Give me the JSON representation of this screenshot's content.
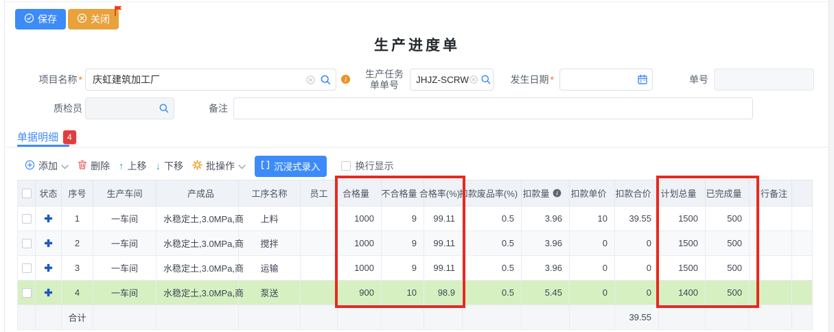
{
  "header": {
    "save_label": "保存",
    "close_label": "关闭"
  },
  "title": "生产进度单",
  "form": {
    "project_label": "项目名称",
    "project_value": "庆虹建筑加工厂",
    "task_label_line1": "生产任务",
    "task_label_line2": "单单号",
    "task_value": "JHJZ-SCRW",
    "date_label": "发生日期",
    "date_value": "",
    "doc_label": "单号",
    "doc_value": "",
    "inspector_label": "质检员",
    "inspector_value": "",
    "remark_label": "备注",
    "remark_value": ""
  },
  "tab": {
    "label": "单据明细",
    "badge": "4"
  },
  "toolbar": {
    "add": "添加",
    "remove": "删除",
    "move_up": "上移",
    "move_down": "下移",
    "batch": "批操作",
    "immersive": "沉浸式录入",
    "wrap": "换行显示"
  },
  "table": {
    "columns": [
      "状态",
      "序号",
      "生产车间",
      "产成品",
      "工序名称",
      "员工",
      "合格量",
      "不合格量",
      "合格率(%)",
      "扣款废品率(%)",
      "扣款量",
      "扣款单价",
      "扣款合价",
      "计划总量",
      "已完成量",
      "行备注"
    ],
    "rows": [
      {
        "seq": "1",
        "workshop": "一车间",
        "product": "水稳定土,3.0MPa,商",
        "process": "上料",
        "staff": "",
        "qualified": "1000",
        "unqualified": "9",
        "rate": "99.11",
        "scrap_rate": "0.5",
        "deduct_qty": "3.96",
        "deduct_price": "10",
        "deduct_total": "39.55",
        "plan_total": "1500",
        "completed": "500",
        "row_remark": "",
        "highlight": false
      },
      {
        "seq": "2",
        "workshop": "一车间",
        "product": "水稳定土,3.0MPa,商",
        "process": "搅拌",
        "staff": "",
        "qualified": "1000",
        "unqualified": "9",
        "rate": "99.11",
        "scrap_rate": "0.5",
        "deduct_qty": "3.96",
        "deduct_price": "0",
        "deduct_total": "0",
        "plan_total": "1500",
        "completed": "500",
        "row_remark": "",
        "highlight": false
      },
      {
        "seq": "3",
        "workshop": "一车间",
        "product": "水稳定土,3.0MPa,商",
        "process": "运输",
        "staff": "",
        "qualified": "1000",
        "unqualified": "9",
        "rate": "99.11",
        "scrap_rate": "0.5",
        "deduct_qty": "3.96",
        "deduct_price": "0",
        "deduct_total": "0",
        "plan_total": "1500",
        "completed": "500",
        "row_remark": "",
        "highlight": false
      },
      {
        "seq": "4",
        "workshop": "一车间",
        "product": "水稳定土,3.0MPa,商",
        "process": "泵送",
        "staff": "",
        "qualified": "900",
        "unqualified": "10",
        "rate": "98.9",
        "scrap_rate": "0.5",
        "deduct_qty": "5.45",
        "deduct_price": "0",
        "deduct_total": "0",
        "plan_total": "1400",
        "completed": "500",
        "row_remark": "",
        "highlight": true
      }
    ],
    "total": {
      "label": "合计",
      "deduct_total": "39.55"
    }
  },
  "colors": {
    "accent_blue": "#3d8bf8",
    "close_orange": "#e9a23b",
    "badge_red": "#e23d3d",
    "highlight_green": "#d6f0c2",
    "annotation_red": "#e8291f"
  }
}
